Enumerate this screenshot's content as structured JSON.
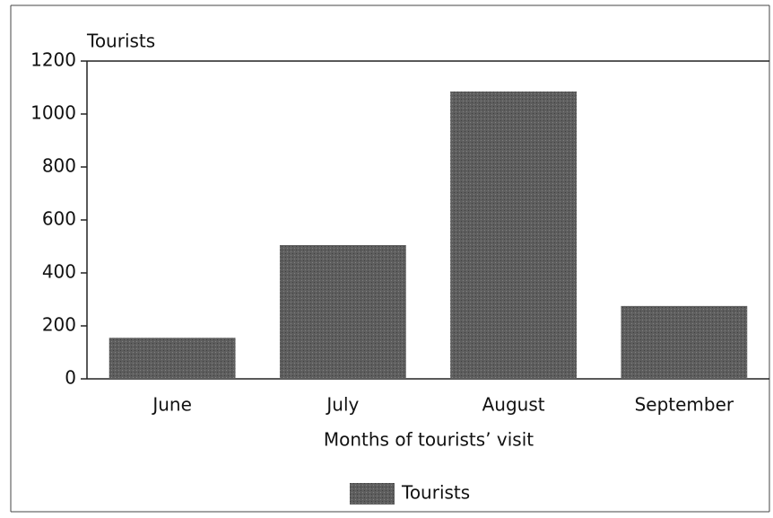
{
  "chart_data": {
    "type": "bar",
    "ylabel": "Tourists",
    "xlabel": "Months of tourists’ visit",
    "categories": [
      "June",
      "July",
      "August",
      "September"
    ],
    "series": [
      {
        "name": "Tourists",
        "color": "#5e5e5e",
        "values": [
          155,
          505,
          1085,
          275
        ]
      }
    ],
    "ylim": [
      0,
      1200
    ],
    "yticks": [
      0,
      200,
      400,
      600,
      800,
      1000,
      1200
    ],
    "legend": "bottom"
  }
}
